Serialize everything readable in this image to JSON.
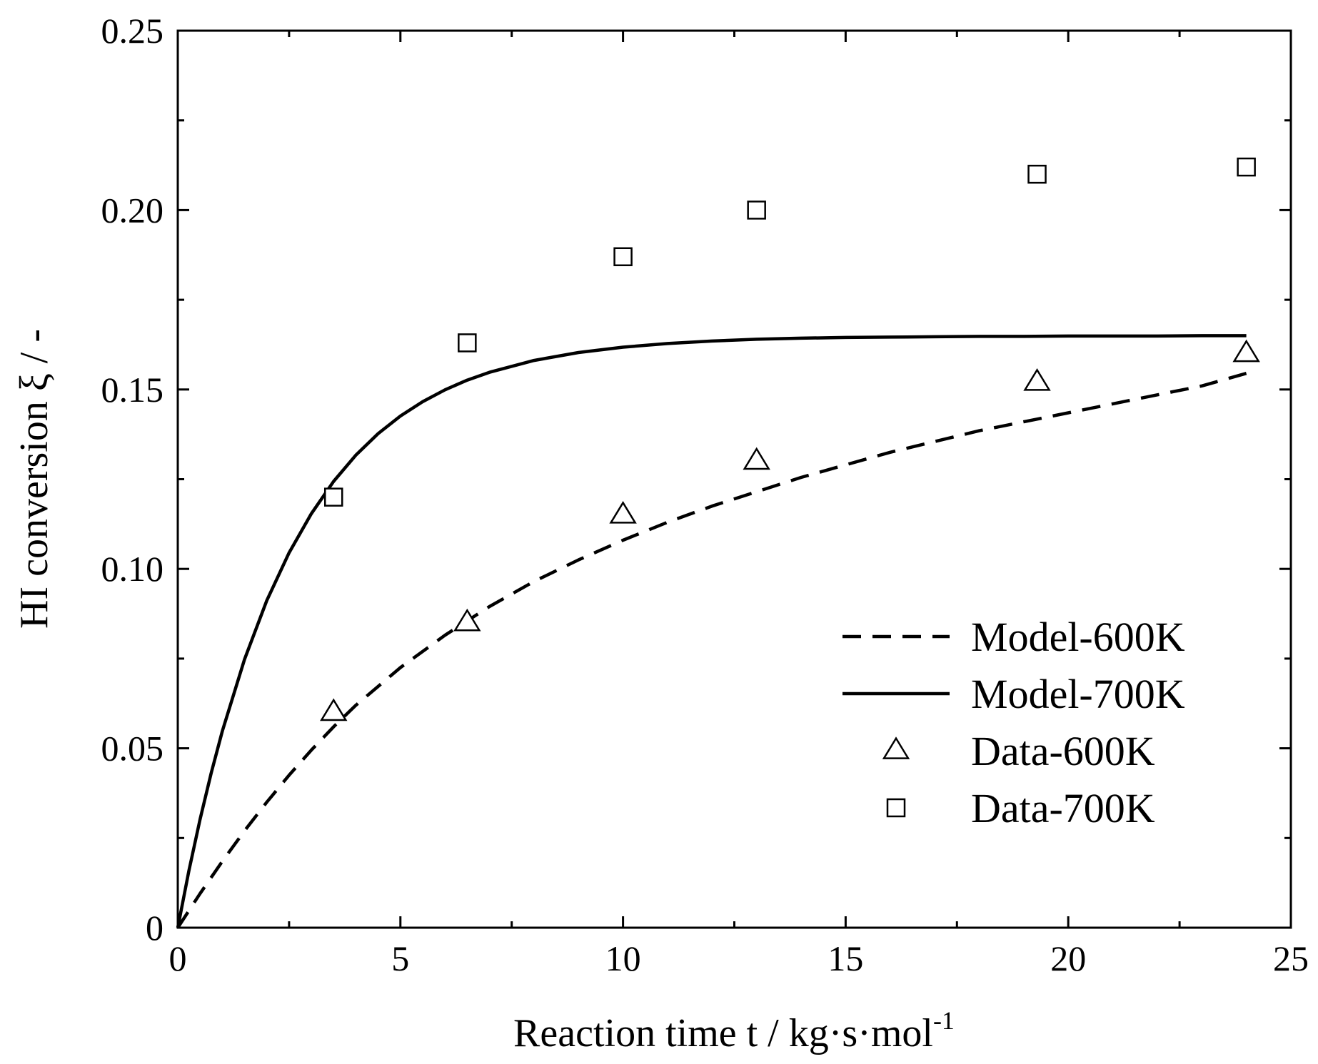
{
  "chart_data": {
    "type": "line",
    "title": "",
    "xlabel": "Reaction time t / kg·s·mol",
    "xlabel_superscript": "-1",
    "ylabel": "HI conversion  ξ / -",
    "xlim": [
      0,
      25
    ],
    "ylim": [
      0,
      0.25
    ],
    "xticks": [
      0,
      5,
      10,
      15,
      20,
      25
    ],
    "xtick_labels": [
      "0",
      "5",
      "10",
      "15",
      "20",
      "25"
    ],
    "yticks": [
      0,
      0.05,
      0.1,
      0.15,
      0.2,
      0.25
    ],
    "ytick_labels": [
      "0",
      "0.05",
      "0.10",
      "0.15",
      "0.20",
      "0.25"
    ],
    "grid": false,
    "legend_position": "bottom-right",
    "series": [
      {
        "name": "Model-600K",
        "kind": "line",
        "style": "dashed",
        "color": "#000000",
        "x": [
          0,
          0.5,
          1,
          1.5,
          2,
          2.5,
          3,
          3.5,
          4,
          5,
          6,
          6.5,
          7,
          8,
          9,
          10,
          11,
          12,
          13,
          14,
          15,
          16,
          17,
          18,
          19,
          20,
          21,
          22,
          23,
          24
        ],
        "y": [
          0,
          0.0095,
          0.0185,
          0.027,
          0.035,
          0.0425,
          0.0495,
          0.056,
          0.062,
          0.0725,
          0.0815,
          0.0855,
          0.0895,
          0.0965,
          0.1025,
          0.108,
          0.113,
          0.1175,
          0.1215,
          0.1255,
          0.129,
          0.1325,
          0.1355,
          0.1385,
          0.141,
          0.1435,
          0.146,
          0.1485,
          0.151,
          0.1545
        ]
      },
      {
        "name": "Model-700K",
        "kind": "line",
        "style": "solid",
        "color": "#000000",
        "x": [
          0,
          0.25,
          0.5,
          0.75,
          1,
          1.5,
          2,
          2.5,
          3,
          3.5,
          4,
          4.5,
          5,
          5.5,
          6,
          6.5,
          7,
          8,
          9,
          10,
          11,
          12,
          13,
          14,
          15,
          16,
          17,
          18,
          19,
          20,
          21,
          22,
          23,
          24
        ],
        "y": [
          0,
          0.0159,
          0.0302,
          0.0431,
          0.0548,
          0.0748,
          0.0912,
          0.1045,
          0.1154,
          0.1244,
          0.1317,
          0.1377,
          0.1426,
          0.1466,
          0.1499,
          0.1526,
          0.1548,
          0.1581,
          0.1603,
          0.1618,
          0.1628,
          0.1635,
          0.164,
          0.1643,
          0.1645,
          0.1646,
          0.1647,
          0.1648,
          0.1648,
          0.1649,
          0.1649,
          0.1649,
          0.165,
          0.165
        ]
      },
      {
        "name": "Data-600K",
        "kind": "scatter",
        "marker": "triangle",
        "color": "#000000",
        "x": [
          3.5,
          6.5,
          10,
          13,
          19.3,
          24
        ],
        "y": [
          0.06,
          0.085,
          0.115,
          0.13,
          0.152,
          0.16
        ]
      },
      {
        "name": "Data-700K",
        "kind": "scatter",
        "marker": "square",
        "color": "#000000",
        "x": [
          3.5,
          6.5,
          10,
          13,
          19.3,
          24
        ],
        "y": [
          0.12,
          0.163,
          0.187,
          0.2,
          0.21,
          0.212
        ]
      }
    ],
    "legend": [
      {
        "label": "Model-600K",
        "symbol": "dashed-line"
      },
      {
        "label": "Model-700K",
        "symbol": "solid-line"
      },
      {
        "label": "Data-600K",
        "symbol": "triangle"
      },
      {
        "label": "Data-700K",
        "symbol": "square"
      }
    ]
  }
}
